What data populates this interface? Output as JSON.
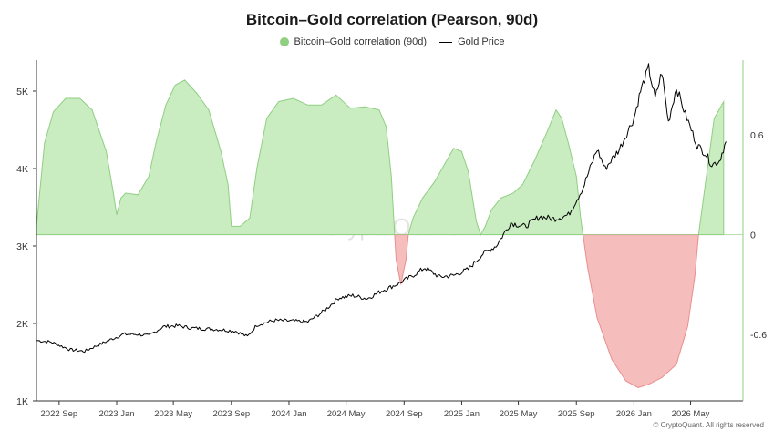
{
  "chart_data": {
    "type": "area",
    "title": "Bitcoin–Gold correlation (Pearson, 90d)",
    "watermark": "CryptoQuant",
    "credit": "© CryptoQuant. All rights reserved",
    "legend_position": "top-center",
    "grid": false,
    "x_ticks": [
      "2022 Sep",
      "2023 Jan",
      "2023 May",
      "2023 Sep",
      "2024 Jan",
      "2024 May",
      "2024 Sep",
      "2025 Jan",
      "2025 May",
      "2025 Sep",
      "2026 Jan",
      "2026 May"
    ],
    "x_range": [
      "2022-07-15",
      "2026-08-20"
    ],
    "left_axis": {
      "ticks": [
        "1K",
        "2K",
        "3K",
        "4K",
        "5K"
      ],
      "tick_values": [
        1000,
        2000,
        3000,
        4000,
        5000
      ],
      "range": [
        1000,
        5400
      ]
    },
    "right_axis": {
      "ticks": [
        "-0.6",
        "0",
        "0.6"
      ],
      "tick_values": [
        -0.6,
        0,
        0.6
      ],
      "range": [
        -1.0,
        1.05
      ]
    },
    "colors": {
      "positive_fill": "#c9ecc1",
      "positive_stroke": "#8fcf82",
      "negative_fill": "#f6bdbd",
      "negative_stroke": "#e88f8f",
      "gold_line": "#000000"
    },
    "series": [
      {
        "name": "Bitcoin–Gold correlation (90d)",
        "axis": "right",
        "points": [
          [
            "2022-07-15",
            0.05
          ],
          [
            "2022-08-01",
            0.55
          ],
          [
            "2022-08-20",
            0.74
          ],
          [
            "2022-09-15",
            0.82
          ],
          [
            "2022-10-15",
            0.82
          ],
          [
            "2022-11-10",
            0.75
          ],
          [
            "2022-12-10",
            0.5
          ],
          [
            "2022-12-25",
            0.25
          ],
          [
            "2023-01-01",
            0.12
          ],
          [
            "2023-01-10",
            0.22
          ],
          [
            "2023-01-20",
            0.25
          ],
          [
            "2023-02-15",
            0.24
          ],
          [
            "2023-03-10",
            0.35
          ],
          [
            "2023-03-25",
            0.55
          ],
          [
            "2023-04-15",
            0.78
          ],
          [
            "2023-05-05",
            0.9
          ],
          [
            "2023-05-25",
            0.93
          ],
          [
            "2023-06-20",
            0.85
          ],
          [
            "2023-07-15",
            0.75
          ],
          [
            "2023-08-10",
            0.5
          ],
          [
            "2023-08-25",
            0.3
          ],
          [
            "2023-09-01",
            0.05
          ],
          [
            "2023-09-20",
            0.05
          ],
          [
            "2023-10-10",
            0.1
          ],
          [
            "2023-10-25",
            0.4
          ],
          [
            "2023-11-15",
            0.7
          ],
          [
            "2023-12-10",
            0.8
          ],
          [
            "2024-01-10",
            0.82
          ],
          [
            "2024-02-10",
            0.78
          ],
          [
            "2024-03-10",
            0.78
          ],
          [
            "2024-04-10",
            0.84
          ],
          [
            "2024-05-10",
            0.76
          ],
          [
            "2024-06-10",
            0.77
          ],
          [
            "2024-07-10",
            0.75
          ],
          [
            "2024-07-25",
            0.65
          ],
          [
            "2024-08-05",
            0.35
          ],
          [
            "2024-08-12",
            0.0
          ],
          [
            "2024-08-15",
            -0.15
          ],
          [
            "2024-08-25",
            -0.3
          ],
          [
            "2024-09-05",
            -0.15
          ],
          [
            "2024-09-10",
            0.0
          ],
          [
            "2024-09-20",
            0.1
          ],
          [
            "2024-10-10",
            0.22
          ],
          [
            "2024-11-05",
            0.32
          ],
          [
            "2024-11-25",
            0.42
          ],
          [
            "2024-12-15",
            0.52
          ],
          [
            "2025-01-01",
            0.5
          ],
          [
            "2025-01-15",
            0.38
          ],
          [
            "2025-02-01",
            0.08
          ],
          [
            "2025-02-10",
            0.0
          ],
          [
            "2025-02-20",
            0.05
          ],
          [
            "2025-03-05",
            0.15
          ],
          [
            "2025-03-25",
            0.22
          ],
          [
            "2025-04-20",
            0.25
          ],
          [
            "2025-05-10",
            0.3
          ],
          [
            "2025-06-05",
            0.45
          ],
          [
            "2025-07-01",
            0.62
          ],
          [
            "2025-07-20",
            0.75
          ],
          [
            "2025-08-01",
            0.7
          ],
          [
            "2025-08-15",
            0.55
          ],
          [
            "2025-09-01",
            0.35
          ],
          [
            "2025-09-10",
            0.1
          ],
          [
            "2025-09-15",
            0.0
          ],
          [
            "2025-09-25",
            -0.2
          ],
          [
            "2025-10-15",
            -0.5
          ],
          [
            "2025-11-15",
            -0.75
          ],
          [
            "2025-12-15",
            -0.88
          ],
          [
            "2026-01-10",
            -0.92
          ],
          [
            "2026-02-01",
            -0.9
          ],
          [
            "2026-03-01",
            -0.86
          ],
          [
            "2026-04-01",
            -0.78
          ],
          [
            "2026-04-25",
            -0.55
          ],
          [
            "2026-05-10",
            -0.25
          ],
          [
            "2026-05-18",
            0.0
          ],
          [
            "2026-06-01",
            0.3
          ],
          [
            "2026-06-20",
            0.7
          ],
          [
            "2026-07-10",
            0.8
          ]
        ]
      },
      {
        "name": "Gold Price",
        "axis": "left",
        "points": [
          [
            "2022-07-15",
            1780
          ],
          [
            "2022-08-15",
            1760
          ],
          [
            "2022-09-25",
            1660
          ],
          [
            "2022-10-25",
            1640
          ],
          [
            "2022-11-15",
            1700
          ],
          [
            "2022-12-15",
            1780
          ],
          [
            "2023-01-15",
            1860
          ],
          [
            "2023-02-15",
            1860
          ],
          [
            "2023-03-10",
            1840
          ],
          [
            "2023-04-10",
            1960
          ],
          [
            "2023-05-10",
            1970
          ],
          [
            "2023-06-10",
            1940
          ],
          [
            "2023-07-10",
            1930
          ],
          [
            "2023-08-10",
            1920
          ],
          [
            "2023-09-10",
            1900
          ],
          [
            "2023-10-05",
            1830
          ],
          [
            "2023-10-25",
            1980
          ],
          [
            "2023-12-01",
            2040
          ],
          [
            "2024-01-10",
            2030
          ],
          [
            "2024-02-10",
            2020
          ],
          [
            "2024-03-15",
            2160
          ],
          [
            "2024-04-15",
            2330
          ],
          [
            "2024-05-15",
            2360
          ],
          [
            "2024-06-15",
            2320
          ],
          [
            "2024-07-15",
            2420
          ],
          [
            "2024-08-15",
            2500
          ],
          [
            "2024-09-15",
            2600
          ],
          [
            "2024-10-15",
            2720
          ],
          [
            "2024-11-15",
            2600
          ],
          [
            "2024-12-15",
            2620
          ],
          [
            "2025-01-15",
            2700
          ],
          [
            "2025-02-15",
            2900
          ],
          [
            "2025-03-15",
            3000
          ],
          [
            "2025-04-15",
            3300
          ],
          [
            "2025-05-15",
            3250
          ],
          [
            "2025-06-15",
            3380
          ],
          [
            "2025-07-15",
            3350
          ],
          [
            "2025-08-15",
            3400
          ],
          [
            "2025-09-15",
            3750
          ],
          [
            "2025-10-15",
            4250
          ],
          [
            "2025-11-01",
            4000
          ],
          [
            "2025-12-01",
            4250
          ],
          [
            "2026-01-01",
            4650
          ],
          [
            "2026-01-15",
            5000
          ],
          [
            "2026-02-01",
            5300
          ],
          [
            "2026-02-15",
            4900
          ],
          [
            "2026-03-01",
            5250
          ],
          [
            "2026-03-15",
            4600
          ],
          [
            "2026-04-01",
            5050
          ],
          [
            "2026-04-20",
            4700
          ],
          [
            "2026-05-15",
            4300
          ],
          [
            "2026-06-01",
            4200
          ],
          [
            "2026-06-15",
            4050
          ],
          [
            "2026-07-01",
            4100
          ],
          [
            "2026-07-15",
            4350
          ]
        ]
      }
    ]
  }
}
